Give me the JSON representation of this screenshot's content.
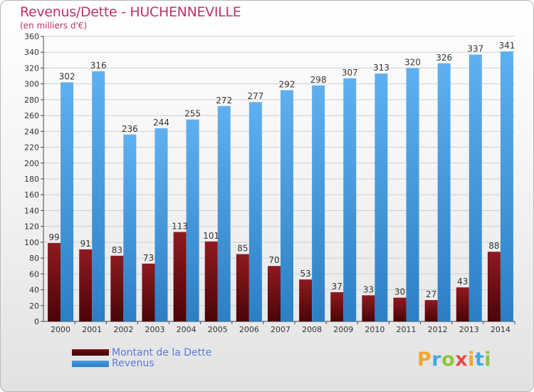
{
  "header": {
    "title": "Revenus/Dette - HUCHENNEVILLE",
    "subtitle": "(en milliers d'€)"
  },
  "chart_data": {
    "type": "bar",
    "title": "Revenus/Dette - HUCHENNEVILLE",
    "subtitle": "(en milliers d'€)",
    "xlabel": "",
    "ylabel": "",
    "ylim": [
      0,
      360
    ],
    "ytick_step": 20,
    "grid": true,
    "categories": [
      "2000",
      "2001",
      "2002",
      "2003",
      "2004",
      "2005",
      "2006",
      "2007",
      "2008",
      "2009",
      "2010",
      "2011",
      "2012",
      "2013",
      "2014"
    ],
    "series": [
      {
        "name": "Montant de la Dette",
        "color": "#7a0f12",
        "values": [
          99,
          91,
          83,
          73,
          113,
          101,
          85,
          70,
          53,
          37,
          33,
          30,
          27,
          43,
          88
        ]
      },
      {
        "name": "Revenus",
        "color": "#4a9de3",
        "values": [
          302,
          316,
          236,
          244,
          255,
          272,
          277,
          292,
          298,
          307,
          313,
          320,
          326,
          337,
          341
        ]
      }
    ],
    "legend_position": "bottom-left"
  },
  "legend": {
    "items": [
      {
        "label": "Montant de la Dette",
        "color": "#7a0f12"
      },
      {
        "label": "Revenus",
        "color": "#4a9de3"
      }
    ]
  },
  "logo": {
    "letters": [
      "P",
      "r",
      "o",
      "x",
      "i",
      "t",
      "i"
    ],
    "colors": [
      "#f2a630",
      "#45a6e0",
      "#8ec63f",
      "#e8474c",
      "#f2a630",
      "#45a6e0",
      "#8ec63f"
    ]
  }
}
